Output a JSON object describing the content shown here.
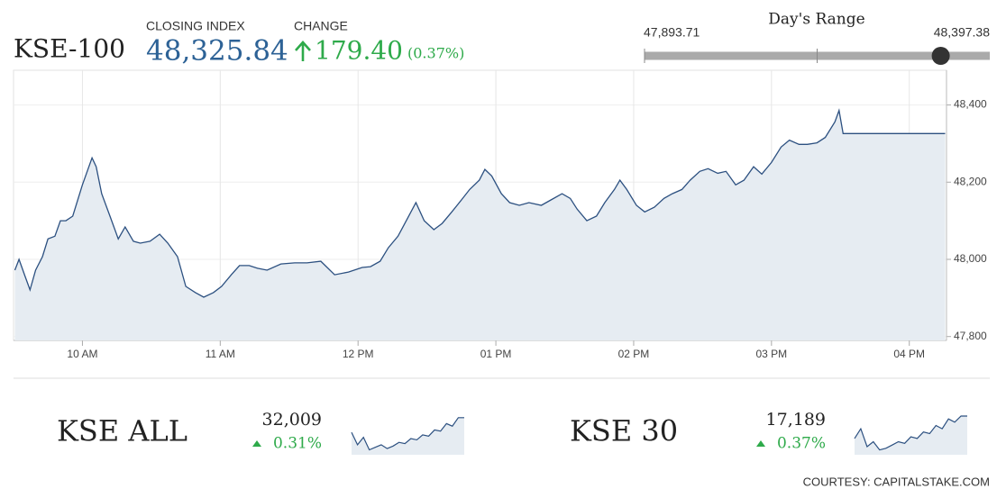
{
  "header": {
    "title": "KSE-100",
    "closing_label": "CLOSING INDEX",
    "closing": {
      "value": 48325.84,
      "label": "48,325.84"
    },
    "change_label": "CHANGE",
    "change": {
      "value": 179.4,
      "label": "179.40"
    },
    "change_pct": {
      "value": 0.37,
      "label": "(0.37%)"
    }
  },
  "range": {
    "title": "Day's Range",
    "low": {
      "value": 47893.71,
      "label": "47,893.71"
    },
    "high": {
      "value": 48397.38,
      "label": "48,397.38"
    }
  },
  "chart_data": {
    "type": "area",
    "color": "#2c5080",
    "fill_color": "#e6ecf2",
    "grid": true,
    "x": [
      9.51,
      9.54,
      9.58,
      9.62,
      9.66,
      9.71,
      9.75,
      9.8,
      9.84,
      9.88,
      9.93,
      10.0,
      10.07,
      10.1,
      10.14,
      10.2,
      10.26,
      10.31,
      10.37,
      10.42,
      10.49,
      10.56,
      10.62,
      10.69,
      10.75,
      10.82,
      10.88,
      10.95,
      11.01,
      11.08,
      11.14,
      11.21,
      11.27,
      11.34,
      11.44,
      11.54,
      11.63,
      11.73,
      11.83,
      11.93,
      12.03,
      12.09,
      12.16,
      12.22,
      12.29,
      12.35,
      12.42,
      12.48,
      12.55,
      12.61,
      12.68,
      12.75,
      12.81,
      12.88,
      12.92,
      12.97,
      13.04,
      13.1,
      13.17,
      13.24,
      13.33,
      13.4,
      13.48,
      13.54,
      13.59,
      13.66,
      13.73,
      13.79,
      13.86,
      13.9,
      13.95,
      14.02,
      14.08,
      14.15,
      14.22,
      14.28,
      14.35,
      14.41,
      14.48,
      14.54,
      14.61,
      14.67,
      14.74,
      14.8,
      14.87,
      14.93,
      15.0,
      15.07,
      15.13,
      15.2,
      15.26,
      15.33,
      15.39,
      15.46,
      15.49,
      15.52,
      16.26
    ],
    "values": [
      47972,
      48000,
      47960,
      47921,
      47972,
      48007,
      48053,
      48060,
      48100,
      48100,
      48112,
      48193,
      48263,
      48240,
      48170,
      48112,
      48053,
      48084,
      48047,
      48042,
      48047,
      48065,
      48042,
      48007,
      47930,
      47914,
      47902,
      47914,
      47930,
      47960,
      47984,
      47984,
      47977,
      47972,
      47988,
      47991,
      47991,
      47995,
      47960,
      47967,
      47979,
      47981,
      47995,
      48030,
      48060,
      48100,
      48147,
      48100,
      48077,
      48093,
      48123,
      48154,
      48181,
      48205,
      48233,
      48216,
      48170,
      48147,
      48140,
      48147,
      48140,
      48154,
      48170,
      48158,
      48130,
      48100,
      48112,
      48147,
      48181,
      48205,
      48181,
      48140,
      48123,
      48135,
      48158,
      48170,
      48181,
      48205,
      48228,
      48235,
      48223,
      48228,
      48193,
      48205,
      48240,
      48221,
      48251,
      48291,
      48309,
      48298,
      48298,
      48302,
      48316,
      48356,
      48386,
      48326,
      48326
    ],
    "xlim": [
      9.5,
      16.27
    ],
    "ylim": [
      47790,
      48490
    ],
    "xticks": [
      {
        "value": 10,
        "label": "10 AM"
      },
      {
        "value": 11,
        "label": "11 AM"
      },
      {
        "value": 12,
        "label": "12 PM"
      },
      {
        "value": 13,
        "label": "01 PM"
      },
      {
        "value": 14,
        "label": "02 PM"
      },
      {
        "value": 15,
        "label": "03 PM"
      },
      {
        "value": 16,
        "label": "04 PM"
      }
    ],
    "yticks": [
      {
        "value": 47800,
        "label": "47,800"
      },
      {
        "value": 48000,
        "label": "48,000"
      },
      {
        "value": 48200,
        "label": "48,200"
      },
      {
        "value": 48400,
        "label": "48,400"
      }
    ]
  },
  "tickers": [
    {
      "name": "KSE ALL",
      "value": {
        "value": 32009,
        "label": "32,009"
      },
      "change": {
        "value": 0.31,
        "label": "0.31%"
      },
      "spark": {
        "values": [
          31950,
          31900,
          31930,
          31880,
          31890,
          31900,
          31885,
          31895,
          31910,
          31905,
          31925,
          31920,
          31940,
          31935,
          31960,
          31955,
          31985,
          31975,
          32009,
          32009
        ],
        "ylim": [
          31860,
          32030
        ]
      }
    },
    {
      "name": "KSE 30",
      "value": {
        "value": 17189,
        "label": "17,189"
      },
      "change": {
        "value": 0.37,
        "label": "0.37%"
      },
      "spark": {
        "values": [
          17120,
          17150,
          17095,
          17110,
          17085,
          17090,
          17100,
          17110,
          17105,
          17125,
          17120,
          17140,
          17135,
          17160,
          17150,
          17180,
          17170,
          17189,
          17189
        ],
        "ylim": [
          17070,
          17200
        ]
      }
    }
  ],
  "courtesy": "COURTESY: CAPITALSTAKE.COM"
}
